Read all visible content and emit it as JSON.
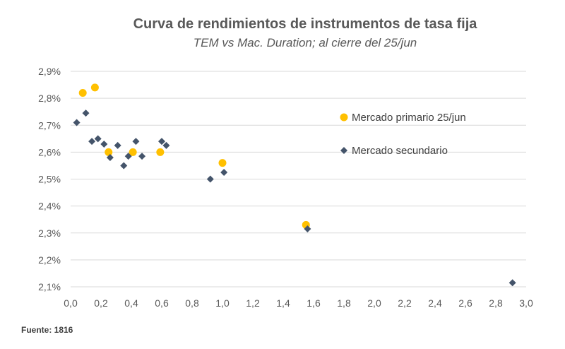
{
  "chart_data": {
    "type": "scatter",
    "title": "Curva de rendimientos de instrumentos de tasa fija",
    "subtitle": "TEM vs Mac. Duration; al cierre del 25/jun",
    "xlabel": "",
    "ylabel": "",
    "xlim": [
      0.0,
      3.0
    ],
    "ylim": [
      2.1,
      2.9
    ],
    "x_ticks": [
      "0,0",
      "0,2",
      "0,4",
      "0,6",
      "0,8",
      "1,0",
      "1,2",
      "1,4",
      "1,6",
      "1,8",
      "2,0",
      "2,2",
      "2,4",
      "2,6",
      "2,8",
      "3,0"
    ],
    "y_ticks": [
      "2,1%",
      "2,2%",
      "2,3%",
      "2,4%",
      "2,5%",
      "2,6%",
      "2,7%",
      "2,8%",
      "2,9%"
    ],
    "grid": "horizontal",
    "legend_position": "right",
    "series": [
      {
        "name": "Mercado primario 25/jun",
        "marker": "circle",
        "color": "#FFC000",
        "points": [
          [
            0.08,
            2.82
          ],
          [
            0.16,
            2.84
          ],
          [
            0.25,
            2.6
          ],
          [
            0.41,
            2.6
          ],
          [
            0.59,
            2.6
          ],
          [
            1.0,
            2.56
          ],
          [
            1.55,
            2.33
          ]
        ]
      },
      {
        "name": "Mercado secundario",
        "marker": "diamond",
        "color": "#44546A",
        "points": [
          [
            0.04,
            2.71
          ],
          [
            0.1,
            2.745
          ],
          [
            0.14,
            2.64
          ],
          [
            0.18,
            2.65
          ],
          [
            0.22,
            2.63
          ],
          [
            0.26,
            2.58
          ],
          [
            0.31,
            2.625
          ],
          [
            0.35,
            2.55
          ],
          [
            0.38,
            2.585
          ],
          [
            0.43,
            2.64
          ],
          [
            0.47,
            2.585
          ],
          [
            0.6,
            2.64
          ],
          [
            0.63,
            2.625
          ],
          [
            0.92,
            2.5
          ],
          [
            1.01,
            2.525
          ],
          [
            1.56,
            2.315
          ],
          [
            2.91,
            2.115
          ]
        ]
      }
    ]
  },
  "footer": {
    "source": "Fuente: 1816"
  }
}
